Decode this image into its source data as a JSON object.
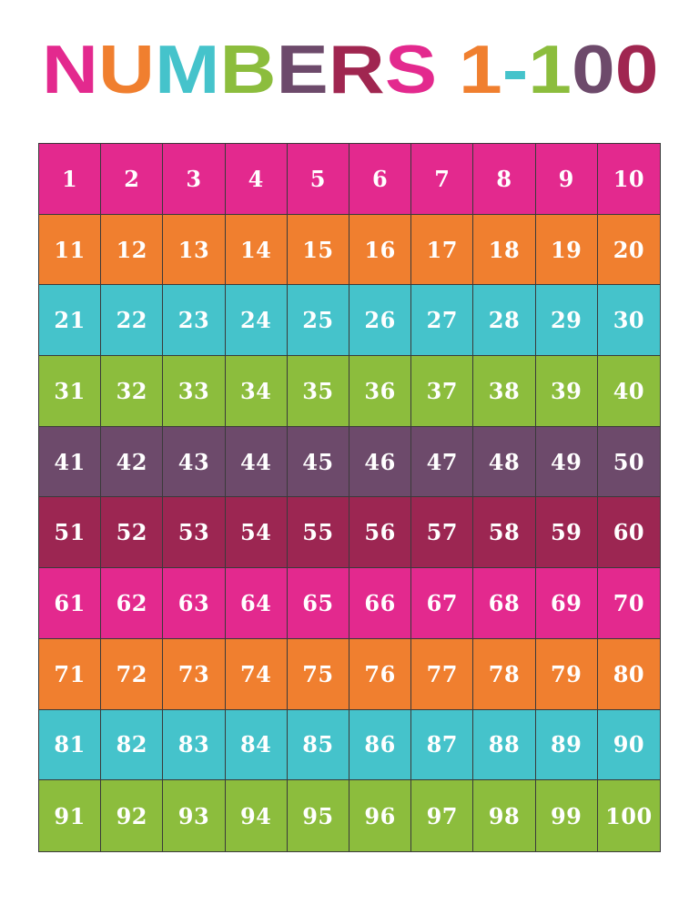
{
  "title": {
    "letters": [
      {
        "char": "N",
        "color": "#e3298e"
      },
      {
        "char": "U",
        "color": "#f07f2f"
      },
      {
        "char": "M",
        "color": "#45c3cb"
      },
      {
        "char": "B",
        "color": "#8cbd3d"
      },
      {
        "char": "E",
        "color": "#6d4a6b"
      },
      {
        "char": "R",
        "color": "#a02650"
      },
      {
        "char": "S",
        "color": "#e3298e"
      },
      {
        "char": " ",
        "color": "#ffffff"
      },
      {
        "char": "1",
        "color": "#f07f2f"
      },
      {
        "char": "-",
        "color": "#45c3cb"
      },
      {
        "char": "1",
        "color": "#8cbd3d"
      },
      {
        "char": "0",
        "color": "#6d4a6b"
      },
      {
        "char": "0",
        "color": "#a02650"
      }
    ]
  },
  "rows": [
    {
      "color": "#e3298e",
      "numbers": [
        "1",
        "2",
        "3",
        "4",
        "5",
        "6",
        "7",
        "8",
        "9",
        "10"
      ]
    },
    {
      "color": "#f07f2f",
      "numbers": [
        "11",
        "12",
        "13",
        "14",
        "15",
        "16",
        "17",
        "18",
        "19",
        "20"
      ]
    },
    {
      "color": "#45c3cb",
      "numbers": [
        "21",
        "22",
        "23",
        "24",
        "25",
        "26",
        "27",
        "28",
        "29",
        "30"
      ]
    },
    {
      "color": "#8cbd3d",
      "numbers": [
        "31",
        "32",
        "33",
        "34",
        "35",
        "36",
        "37",
        "38",
        "39",
        "40"
      ]
    },
    {
      "color": "#6d4a6b",
      "numbers": [
        "41",
        "42",
        "43",
        "44",
        "45",
        "46",
        "47",
        "48",
        "49",
        "50"
      ]
    },
    {
      "color": "#9c2652",
      "numbers": [
        "51",
        "52",
        "53",
        "54",
        "55",
        "56",
        "57",
        "58",
        "59",
        "60"
      ]
    },
    {
      "color": "#e3298e",
      "numbers": [
        "61",
        "62",
        "63",
        "64",
        "65",
        "66",
        "67",
        "68",
        "69",
        "70"
      ]
    },
    {
      "color": "#f07f2f",
      "numbers": [
        "71",
        "72",
        "73",
        "74",
        "75",
        "76",
        "77",
        "78",
        "79",
        "80"
      ]
    },
    {
      "color": "#45c3cb",
      "numbers": [
        "81",
        "82",
        "83",
        "84",
        "85",
        "86",
        "87",
        "88",
        "89",
        "90"
      ]
    },
    {
      "color": "#8cbd3d",
      "numbers": [
        "91",
        "92",
        "93",
        "94",
        "95",
        "96",
        "97",
        "98",
        "99",
        "100"
      ]
    }
  ]
}
